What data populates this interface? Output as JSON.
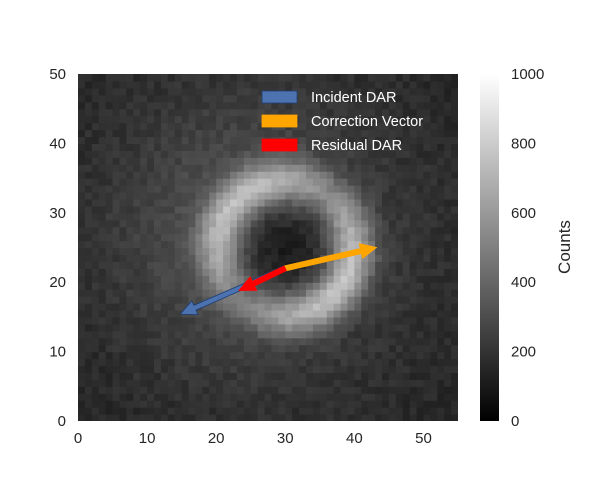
{
  "chart_data": {
    "type": "heatmap",
    "title": "",
    "xlabel": "",
    "ylabel": "",
    "xlim": [
      0,
      55
    ],
    "ylim": [
      0,
      50
    ],
    "x_ticks": [
      "0",
      "10",
      "20",
      "30",
      "40",
      "50"
    ],
    "y_ticks": [
      "0",
      "10",
      "20",
      "30",
      "40",
      "50"
    ],
    "grid": false,
    "colormap": "gray",
    "colorbar": {
      "label": "Counts",
      "range": [
        0,
        1000
      ],
      "ticks": [
        "0",
        "200",
        "400",
        "600",
        "800",
        "1000"
      ]
    },
    "image_description_values": {
      "ring_center": [
        30,
        25
      ],
      "dark_core_value": 120,
      "bright_ring_peak": 820,
      "background_value": 230
    },
    "vectors": [
      {
        "name": "Incident DAR",
        "color": "#4c72b0",
        "start": [
          30,
          22
        ],
        "end": [
          14.8,
          15.4
        ]
      },
      {
        "name": "Correction Vector",
        "color": "#ffa500",
        "start": [
          30,
          22
        ],
        "end": [
          43.2,
          25
        ]
      },
      {
        "name": "Residual DAR",
        "color": "#ff0000",
        "start": [
          30,
          22
        ],
        "end": [
          23.3,
          18.8
        ]
      }
    ],
    "legend": {
      "position": "upper-right",
      "entries": [
        "Incident DAR",
        "Correction Vector",
        "Residual DAR"
      ]
    }
  }
}
